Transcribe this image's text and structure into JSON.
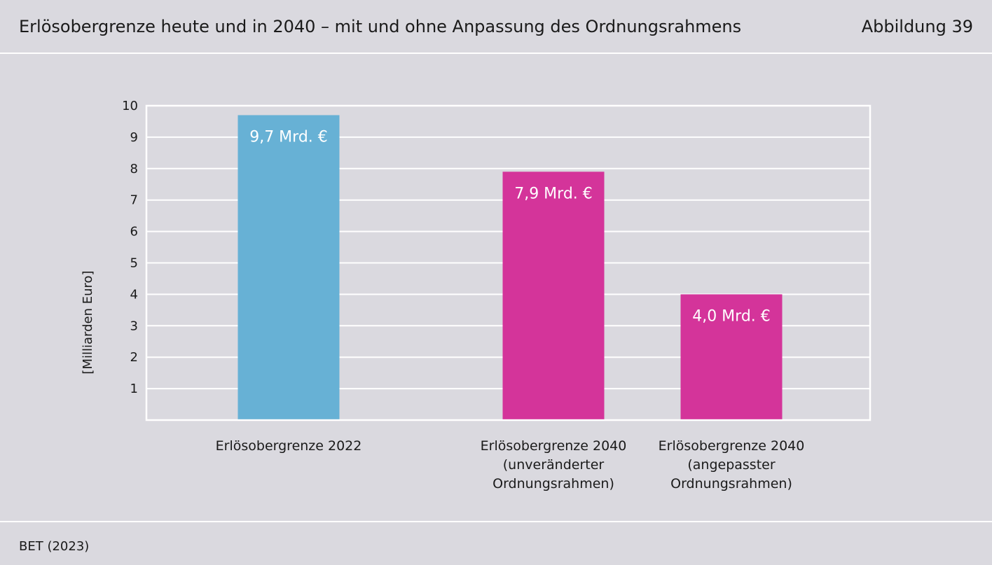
{
  "header": {
    "title": "Erlösobergrenze heute und in 2040 – mit und ohne Anpassung des Ordnungsrahmens",
    "figure_label": "Abbildung 39"
  },
  "footer": {
    "source": "BET (2023)"
  },
  "chart_data": {
    "type": "bar",
    "title": "Erlösobergrenze heute und in 2040 – mit und ohne Anpassung des Ordnungsrahmens",
    "ylabel": "[Milliarden Euro]",
    "xlabel": "",
    "ylim": [
      0,
      10
    ],
    "yticks": [
      1,
      2,
      3,
      4,
      5,
      6,
      7,
      8,
      9,
      10
    ],
    "grid": true,
    "legend": "none",
    "categories": [
      [
        "Erlösobergrenze 2022"
      ],
      [
        "Erlösobergrenze 2040",
        "(unveränderter",
        "Ordnungsrahmen)"
      ],
      [
        "Erlösobergrenze 2040",
        "(angepasster",
        "Ordnungsrahmen)"
      ]
    ],
    "values": [
      9.7,
      7.9,
      4.0
    ],
    "data_labels": [
      "9,7 Mrd. €",
      "7,9 Mrd. €",
      "4,0 Mrd. €"
    ],
    "colors": [
      "#67b1d5",
      "#d4349a",
      "#d4349a"
    ]
  }
}
